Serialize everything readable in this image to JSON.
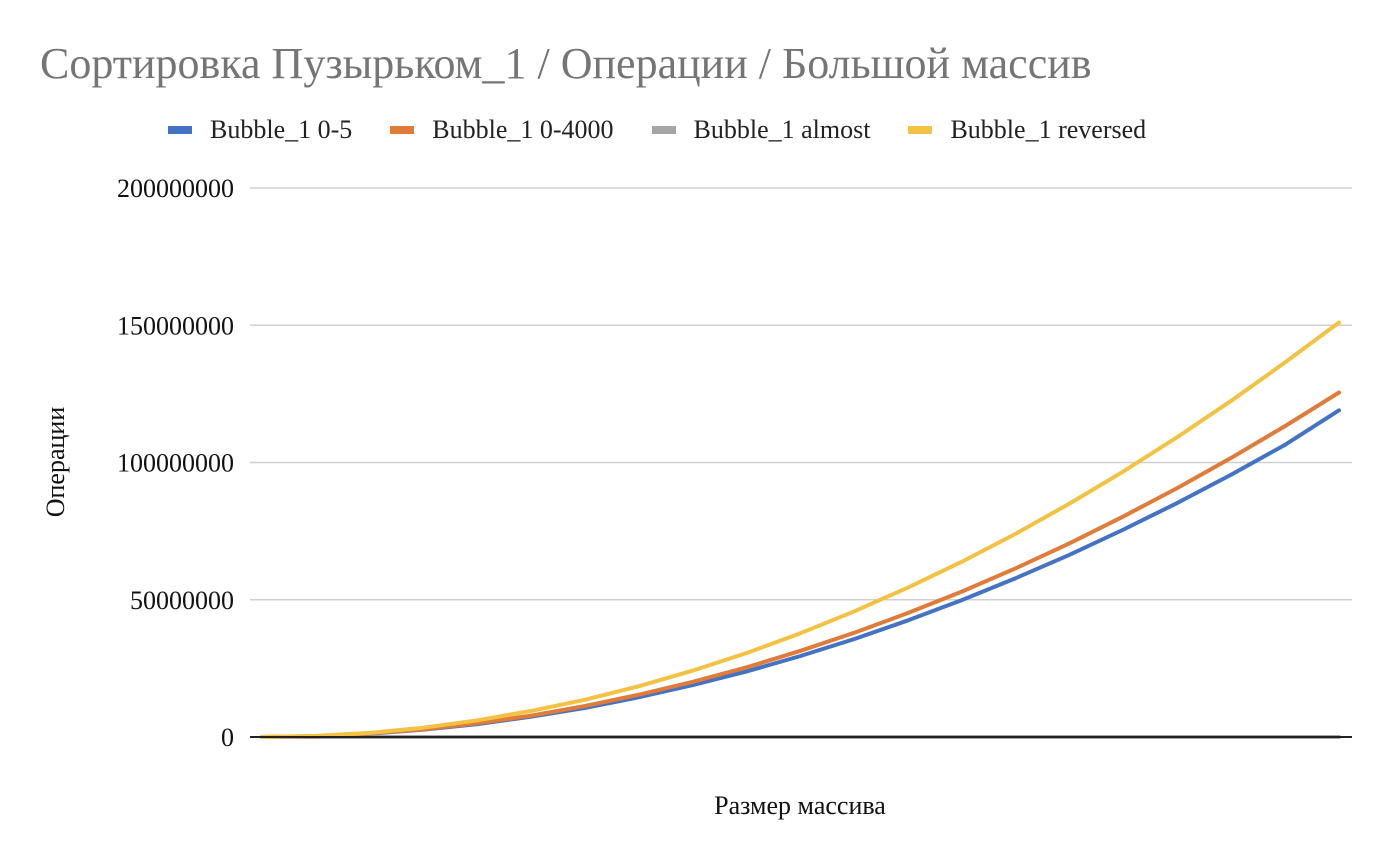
{
  "chart_data": {
    "type": "line",
    "title": "Сортировка Пузырьком_1 / Операции / Большой массив",
    "xlabel": "Размер массива",
    "ylabel": "Операции",
    "ylim": [
      0,
      200000000
    ],
    "y_ticks": [
      "0",
      "50000000",
      "100000000",
      "150000000",
      "200000000"
    ],
    "y_tick_values": [
      0,
      50000000,
      100000000,
      150000000,
      200000000
    ],
    "x_tick_labels_visible": false,
    "grid": true,
    "legend_position": "top",
    "x": [
      0,
      1,
      2,
      3,
      4,
      5,
      6,
      7,
      8,
      9,
      10,
      11,
      12,
      13,
      14,
      15,
      16,
      17,
      18,
      19,
      20
    ],
    "series": [
      {
        "name": "Bubble_1 0-5",
        "color": "#4472C4",
        "values": [
          0,
          300000,
          1200000,
          2700000,
          4700000,
          7400000,
          10600000,
          14500000,
          18900000,
          23900000,
          29500000,
          35700000,
          42500000,
          49900000,
          57900000,
          66400000,
          75600000,
          85300000,
          95600000,
          106500000,
          119000000
        ]
      },
      {
        "name": "Bubble_1 0-4000",
        "color": "#E07B39",
        "values": [
          0,
          300000,
          1300000,
          2800000,
          5000000,
          7800000,
          11300000,
          15400000,
          20100000,
          25400000,
          31400000,
          38000000,
          45200000,
          53000000,
          61500000,
          70600000,
          80400000,
          90700000,
          101700000,
          113300000,
          125500000
        ]
      },
      {
        "name": "Bubble_1 almost",
        "color": "#A5A5A5",
        "values": [
          0,
          0,
          0,
          0,
          0,
          0,
          0,
          0,
          0,
          0,
          0,
          0,
          0,
          0,
          0,
          0,
          0,
          0,
          0,
          0,
          0
        ]
      },
      {
        "name": "Bubble_1 reversed",
        "color": "#F4C242",
        "values": [
          0,
          400000,
          1500000,
          3400000,
          6100000,
          9500000,
          13600000,
          18500000,
          24200000,
          30600000,
          37800000,
          45800000,
          54500000,
          63900000,
          74100000,
          85100000,
          96800000,
          109300000,
          122500000,
          136500000,
          151000000
        ]
      }
    ]
  }
}
